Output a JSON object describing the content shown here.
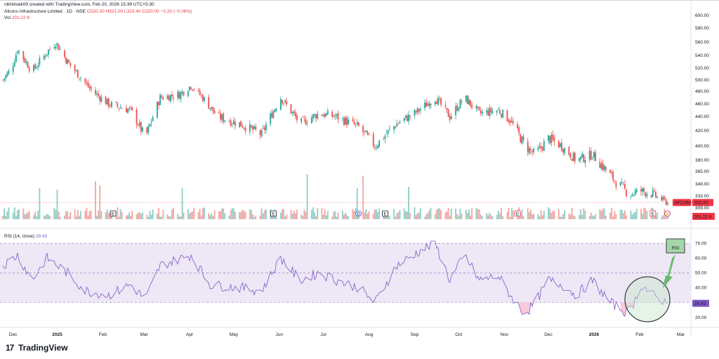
{
  "header": {
    "created_by": "nikhilnaik09 created with TradingView.com, Feb 20, 2026 15:39 UTC+5:30",
    "symbol": "Afcons Infrastructure Limited · 1D · NSE",
    "ohlc": "O320.20 H321.00 L315.40 C320.00 −0.20 (−0.06%)",
    "vol_label": "Vol",
    "vol_value": "201.22 K",
    "rsi_label": "RSI (14, close)",
    "rsi_value": "29.43"
  },
  "badges": {
    "price_tag": "AFCONS",
    "price_value": "320.00",
    "volume_value": "201.22 K",
    "rsi_value": "29.43"
  },
  "annotation": {
    "label": "RSI"
  },
  "brand": {
    "name": "TradingView",
    "mark": "17"
  },
  "colors": {
    "up": "#26a69a",
    "down": "#ef5350",
    "rsi": "#7e57c2",
    "band": "#ede7f6"
  },
  "chart_data": [
    {
      "type": "candlestick",
      "symbol": "AFCONS",
      "x_ticks": [
        "Dec",
        "2025",
        "Feb",
        "Mar",
        "Apr",
        "May",
        "Jun",
        "Jul",
        "Aug",
        "Sep",
        "Oct",
        "Nov",
        "Dec",
        "2026",
        "Feb",
        "Mar"
      ],
      "y_ticks": [
        600,
        580,
        560,
        540,
        520,
        500,
        480,
        460,
        440,
        420,
        400,
        380,
        365,
        349,
        333,
        309
      ],
      "y_tick_labels": [
        "600.00",
        "580.00",
        "560.00",
        "540.00",
        "520.00",
        "500.00",
        "480.00",
        "460.00",
        "440.00",
        "420.00",
        "400.00",
        "380.00",
        "365.00",
        "349.00",
        "333.00",
        "309.00"
      ],
      "ylim": [
        305,
        604
      ],
      "last_close": 320.0,
      "event_markers": [
        {
          "date": "2025-02-08",
          "label": "E"
        },
        {
          "date": "2025-05-28",
          "label": "E"
        },
        {
          "date": "2025-07-25",
          "label": "D"
        },
        {
          "date": "2025-08-12",
          "label": "E"
        },
        {
          "date": "2025-11-10",
          "label": "E"
        },
        {
          "date": "2026-02-10",
          "label": "E"
        },
        {
          "date": "2026-02-20",
          "label": "⚡"
        }
      ],
      "close_anchors": [
        {
          "date": "2024-11-25",
          "close": 500
        },
        {
          "date": "2024-12-01",
          "close": 520
        },
        {
          "date": "2024-12-05",
          "close": 550
        },
        {
          "date": "2024-12-15",
          "close": 515
        },
        {
          "date": "2024-12-25",
          "close": 545
        },
        {
          "date": "2024-12-31",
          "close": 560
        },
        {
          "date": "2025-01-08",
          "close": 530
        },
        {
          "date": "2025-01-15",
          "close": 510
        },
        {
          "date": "2025-01-25",
          "close": 480
        },
        {
          "date": "2025-02-05",
          "close": 460
        },
        {
          "date": "2025-02-20",
          "close": 450
        },
        {
          "date": "2025-03-02",
          "close": 410
        },
        {
          "date": "2025-03-12",
          "close": 470
        },
        {
          "date": "2025-03-25",
          "close": 475
        },
        {
          "date": "2025-04-02",
          "close": 490
        },
        {
          "date": "2025-04-10",
          "close": 470
        },
        {
          "date": "2025-04-20",
          "close": 440
        },
        {
          "date": "2025-05-05",
          "close": 430
        },
        {
          "date": "2025-05-20",
          "close": 415
        },
        {
          "date": "2025-06-02",
          "close": 470
        },
        {
          "date": "2025-06-15",
          "close": 430
        },
        {
          "date": "2025-06-28",
          "close": 445
        },
        {
          "date": "2025-07-10",
          "close": 440
        },
        {
          "date": "2025-07-25",
          "close": 425
        },
        {
          "date": "2025-08-05",
          "close": 400
        },
        {
          "date": "2025-08-20",
          "close": 430
        },
        {
          "date": "2025-09-01",
          "close": 445
        },
        {
          "date": "2025-09-15",
          "close": 470
        },
        {
          "date": "2025-09-25",
          "close": 440
        },
        {
          "date": "2025-10-05",
          "close": 470
        },
        {
          "date": "2025-10-15",
          "close": 445
        },
        {
          "date": "2025-10-28",
          "close": 450
        },
        {
          "date": "2025-11-05",
          "close": 435
        },
        {
          "date": "2025-11-15",
          "close": 400
        },
        {
          "date": "2025-11-22",
          "close": 388
        },
        {
          "date": "2025-12-01",
          "close": 410
        },
        {
          "date": "2025-12-10",
          "close": 400
        },
        {
          "date": "2025-12-20",
          "close": 380
        },
        {
          "date": "2025-12-31",
          "close": 388
        },
        {
          "date": "2026-01-12",
          "close": 360
        },
        {
          "date": "2026-01-25",
          "close": 335
        },
        {
          "date": "2026-02-02",
          "close": 340
        },
        {
          "date": "2026-02-10",
          "close": 335
        },
        {
          "date": "2026-02-20",
          "close": 320
        }
      ],
      "volume_last": "201.22 K"
    },
    {
      "type": "line",
      "name": "RSI (14, close)",
      "y_ticks": [
        70,
        60,
        50,
        40,
        30,
        20
      ],
      "y_tick_labels": [
        "70.00",
        "60.00",
        "50.00",
        "40.00",
        "30.00",
        "20.00"
      ],
      "ylim": [
        17,
        72
      ],
      "band": [
        30,
        70
      ],
      "midline": 50,
      "last_value": 29.43,
      "rsi_anchors": [
        {
          "date": "2024-11-25",
          "v": 55
        },
        {
          "date": "2024-12-05",
          "v": 62
        },
        {
          "date": "2024-12-15",
          "v": 45
        },
        {
          "date": "2024-12-25",
          "v": 60
        },
        {
          "date": "2025-01-08",
          "v": 50
        },
        {
          "date": "2025-01-20",
          "v": 38
        },
        {
          "date": "2025-02-05",
          "v": 35
        },
        {
          "date": "2025-02-20",
          "v": 42
        },
        {
          "date": "2025-03-02",
          "v": 32
        },
        {
          "date": "2025-03-12",
          "v": 55
        },
        {
          "date": "2025-04-02",
          "v": 62
        },
        {
          "date": "2025-04-15",
          "v": 42
        },
        {
          "date": "2025-05-05",
          "v": 40
        },
        {
          "date": "2025-05-20",
          "v": 38
        },
        {
          "date": "2025-06-02",
          "v": 60
        },
        {
          "date": "2025-06-15",
          "v": 45
        },
        {
          "date": "2025-06-28",
          "v": 50
        },
        {
          "date": "2025-07-10",
          "v": 45
        },
        {
          "date": "2025-07-25",
          "v": 40
        },
        {
          "date": "2025-08-05",
          "v": 30
        },
        {
          "date": "2025-08-20",
          "v": 55
        },
        {
          "date": "2025-09-05",
          "v": 65
        },
        {
          "date": "2025-09-15",
          "v": 70
        },
        {
          "date": "2025-09-25",
          "v": 45
        },
        {
          "date": "2025-10-05",
          "v": 62
        },
        {
          "date": "2025-10-15",
          "v": 45
        },
        {
          "date": "2025-10-28",
          "v": 48
        },
        {
          "date": "2025-11-05",
          "v": 35
        },
        {
          "date": "2025-11-15",
          "v": 22
        },
        {
          "date": "2025-11-22",
          "v": 30
        },
        {
          "date": "2025-12-01",
          "v": 45
        },
        {
          "date": "2025-12-10",
          "v": 42
        },
        {
          "date": "2025-12-20",
          "v": 35
        },
        {
          "date": "2025-12-31",
          "v": 45
        },
        {
          "date": "2026-01-12",
          "v": 30
        },
        {
          "date": "2026-01-25",
          "v": 22
        },
        {
          "date": "2026-02-02",
          "v": 42
        },
        {
          "date": "2026-02-10",
          "v": 35
        },
        {
          "date": "2026-02-20",
          "v": 29.43
        }
      ]
    }
  ]
}
